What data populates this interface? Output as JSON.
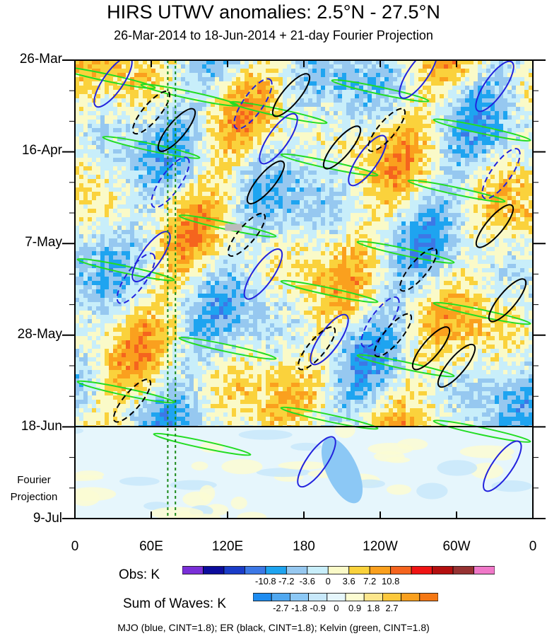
{
  "title": "HIRS UTWV anomalies: 2.5°N - 27.5°N",
  "subtitle": "26-Mar-2014 to 18-Jun-2014 + 21-day Fourier Projection",
  "projection_label": [
    "Fourier",
    "Projection"
  ],
  "footer": "MJO (blue, CINT=1.8); ER (black, CINT=1.8); Kelvin (green, CINT=1.8)",
  "chart_data": {
    "type": "heatmap",
    "title": "HIRS UTWV anomalies: 2.5°N - 27.5°N",
    "x_ticks": [
      "0",
      "60E",
      "120E",
      "180",
      "120W",
      "60W",
      "0"
    ],
    "y_ticks": [
      "26-Mar",
      "16-Apr",
      "7-May",
      "28-May",
      "18-Jun",
      "9-Jul"
    ],
    "x_range": [
      0,
      360
    ],
    "y_range_days": [
      0,
      105
    ],
    "observation_end_day": 84,
    "reference_lines_longitude": [
      73,
      79
    ],
    "obs_colorbar": {
      "title": "Obs: K",
      "tick_labels": [
        "-10.8",
        "-7.2",
        "-3.6",
        "0",
        "3.6",
        "7.2",
        "10.8"
      ],
      "colors": [
        "#7a2fd8",
        "#0c0c9c",
        "#1a3cc8",
        "#3c78e6",
        "#1ea4f0",
        "#96c8f0",
        "#c8eefa",
        "#fafac8",
        "#fad23c",
        "#faa01e",
        "#f5641e",
        "#f01414",
        "#b40f0f",
        "#963232",
        "#f078c8"
      ]
    },
    "waves_colorbar": {
      "title": "Sum of Waves: K",
      "tick_labels": [
        "-2.7",
        "-1.8",
        "-0.9",
        "0",
        "0.9",
        "1.8",
        "2.7"
      ],
      "colors": [
        "#1e8cf0",
        "#50a8f0",
        "#8cc8f5",
        "#c8e8fa",
        "#e6f6fc",
        "#fcfcd2",
        "#fce68c",
        "#fcc83c",
        "#faa01e",
        "#f57814"
      ]
    },
    "contour_series": [
      {
        "name": "MJO",
        "color": "blue",
        "cint": 1.8
      },
      {
        "name": "ER",
        "color": "black",
        "cint": 1.8
      },
      {
        "name": "Kelvin",
        "color": "green",
        "cint": 1.8
      }
    ]
  }
}
